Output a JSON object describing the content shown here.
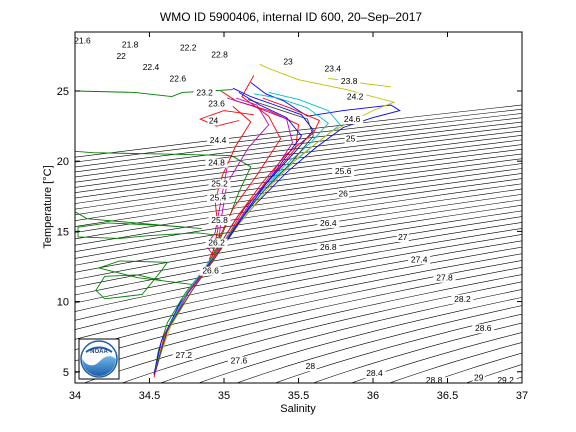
{
  "chart_data": {
    "type": "line",
    "title": "WMO ID 5900406, internal ID 600, 20–Sep–2017",
    "xlabel": "Salinity",
    "ylabel": "Temperature [°C]",
    "xlim": [
      34,
      37
    ],
    "ylim": [
      4.2,
      29.2
    ],
    "xticks": [
      34,
      34.5,
      35,
      35.5,
      36,
      36.5,
      37
    ],
    "xtick_labels": [
      "34",
      "34.5",
      "35",
      "35.5",
      "36",
      "36.5",
      "37"
    ],
    "yticks": [
      5,
      10,
      15,
      20,
      25
    ],
    "ytick_labels": [
      "5",
      "10",
      "15",
      "20",
      "25"
    ],
    "grid": false,
    "density_contour_labels": [
      {
        "label": "21.6",
        "x": 34.05,
        "y": 28.6
      },
      {
        "label": "21.8",
        "x": 34.37,
        "y": 28.3
      },
      {
        "label": "22",
        "x": 34.31,
        "y": 27.5
      },
      {
        "label": "22.2",
        "x": 34.76,
        "y": 28.1
      },
      {
        "label": "22.4",
        "x": 34.51,
        "y": 26.7
      },
      {
        "label": "22.6",
        "x": 34.69,
        "y": 25.9
      },
      {
        "label": "22.8",
        "x": 34.97,
        "y": 27.6
      },
      {
        "label": "23",
        "x": 35.43,
        "y": 27.1
      },
      {
        "label": "23.2",
        "x": 34.87,
        "y": 24.9
      },
      {
        "label": "23.4",
        "x": 35.73,
        "y": 26.6
      },
      {
        "label": "23.6",
        "x": 34.95,
        "y": 24.1
      },
      {
        "label": "23.8",
        "x": 35.84,
        "y": 25.7
      },
      {
        "label": "24",
        "x": 34.93,
        "y": 22.9
      },
      {
        "label": "24.2",
        "x": 35.88,
        "y": 24.6
      },
      {
        "label": "24.4",
        "x": 34.96,
        "y": 21.5
      },
      {
        "label": "24.6",
        "x": 35.86,
        "y": 23.0
      },
      {
        "label": "24.8",
        "x": 34.95,
        "y": 19.9
      },
      {
        "label": "25",
        "x": 35.85,
        "y": 21.6
      },
      {
        "label": "25.2",
        "x": 34.97,
        "y": 18.4
      },
      {
        "label": "25.4",
        "x": 34.96,
        "y": 17.4
      },
      {
        "label": "25.6",
        "x": 35.8,
        "y": 19.3
      },
      {
        "label": "25.8",
        "x": 34.97,
        "y": 15.8
      },
      {
        "label": "26",
        "x": 35.8,
        "y": 17.7
      },
      {
        "label": "26.2",
        "x": 34.95,
        "y": 14.2
      },
      {
        "label": "26.4",
        "x": 35.7,
        "y": 15.6
      },
      {
        "label": "26.6",
        "x": 34.91,
        "y": 12.2
      },
      {
        "label": "26.8",
        "x": 35.7,
        "y": 13.9
      },
      {
        "label": "27",
        "x": 36.2,
        "y": 14.6
      },
      {
        "label": "27.2",
        "x": 34.73,
        "y": 6.2
      },
      {
        "label": "27.4",
        "x": 36.31,
        "y": 13.0
      },
      {
        "label": "27.6",
        "x": 35.1,
        "y": 5.8
      },
      {
        "label": "27.8",
        "x": 36.48,
        "y": 11.7
      },
      {
        "label": "28",
        "x": 35.58,
        "y": 5.4
      },
      {
        "label": "28.2",
        "x": 36.6,
        "y": 10.2
      },
      {
        "label": "28.4",
        "x": 36.01,
        "y": 4.9
      },
      {
        "label": "28.6",
        "x": 36.74,
        "y": 8.1
      },
      {
        "label": "28.8",
        "x": 36.41,
        "y": 4.4
      },
      {
        "label": "29",
        "x": 36.71,
        "y": 4.6
      },
      {
        "label": "29.2",
        "x": 36.89,
        "y": 4.4
      }
    ],
    "profile_colors": [
      "#0000ff",
      "#008000",
      "#ff0000",
      "#00bfbf",
      "#bf00bf",
      "#bfbf00",
      "#404040"
    ],
    "series": [
      {
        "color": "#008000",
        "points": [
          [
            34.53,
            4.8
          ],
          [
            34.56,
            6.5
          ],
          [
            34.62,
            8.5
          ],
          [
            34.74,
            10.6
          ],
          [
            34.88,
            12.5
          ],
          [
            34.94,
            13.6
          ],
          [
            34.89,
            14.2
          ],
          [
            34.98,
            14.7
          ],
          [
            34.82,
            14.9
          ],
          [
            34.5,
            14.7
          ],
          [
            34.3,
            14.5
          ],
          [
            34.02,
            14.6
          ],
          [
            34.02,
            15.3
          ],
          [
            34.22,
            15.6
          ],
          [
            34.62,
            15.4
          ],
          [
            34.85,
            15.2
          ],
          [
            34.08,
            15.9
          ],
          [
            34.0,
            16.4
          ]
        ]
      },
      {
        "color": "#008000",
        "points": [
          [
            34.58,
            11.5
          ],
          [
            34.42,
            11.9
          ],
          [
            34.2,
            11.8
          ],
          [
            34.14,
            10.8
          ],
          [
            34.2,
            10.2
          ],
          [
            34.45,
            10.5
          ],
          [
            34.58,
            12.2
          ],
          [
            34.62,
            12.8
          ],
          [
            34.3,
            12.9
          ],
          [
            34.16,
            12.4
          ],
          [
            34.42,
            11.7
          ],
          [
            34.8,
            11.2
          ]
        ]
      },
      {
        "color": "#008000",
        "points": [
          [
            34.94,
            13.6
          ],
          [
            35.02,
            15.6
          ],
          [
            35.1,
            17.8
          ],
          [
            35.18,
            19.6
          ],
          [
            35.05,
            20.4
          ],
          [
            34.6,
            20.5
          ],
          [
            34.12,
            20.6
          ],
          [
            34.0,
            20.7
          ]
        ]
      },
      {
        "color": "#008000",
        "points": [
          [
            34.0,
            25.0
          ],
          [
            34.4,
            24.9
          ],
          [
            34.65,
            24.6
          ],
          [
            34.72,
            24.9
          ],
          [
            34.9,
            25.0
          ],
          [
            35.06,
            25.1
          ]
        ]
      },
      {
        "color": "#0000ff",
        "points": [
          [
            34.53,
            4.8
          ],
          [
            34.58,
            7.2
          ],
          [
            34.7,
            9.8
          ],
          [
            34.88,
            12.4
          ],
          [
            35.02,
            14.5
          ],
          [
            35.2,
            16.8
          ],
          [
            35.42,
            19.2
          ],
          [
            35.62,
            21.0
          ],
          [
            35.8,
            22.4
          ],
          [
            36.0,
            23.1
          ],
          [
            36.18,
            23.6
          ],
          [
            36.12,
            24.0
          ],
          [
            35.8,
            23.6
          ],
          [
            35.56,
            23.2
          ],
          [
            35.4,
            24.3
          ],
          [
            35.28,
            24.8
          ],
          [
            35.18,
            25.6
          ]
        ]
      },
      {
        "color": "#0000ff",
        "points": [
          [
            34.95,
            13.7
          ],
          [
            35.1,
            16.2
          ],
          [
            35.3,
            18.6
          ],
          [
            35.48,
            20.7
          ],
          [
            35.6,
            22.2
          ],
          [
            35.52,
            23.3
          ],
          [
            35.34,
            24.0
          ],
          [
            35.18,
            24.6
          ],
          [
            35.06,
            25.2
          ]
        ]
      },
      {
        "color": "#ff0000",
        "points": [
          [
            34.53,
            4.6
          ],
          [
            34.6,
            7.6
          ],
          [
            34.74,
            10.4
          ],
          [
            34.9,
            12.6
          ],
          [
            35.02,
            14.6
          ],
          [
            35.14,
            16.7
          ],
          [
            35.32,
            18.9
          ],
          [
            35.48,
            20.9
          ],
          [
            35.5,
            22.6
          ],
          [
            35.3,
            23.6
          ],
          [
            35.08,
            24.3
          ],
          [
            34.98,
            25.0
          ]
        ]
      },
      {
        "color": "#ff0000",
        "points": [
          [
            34.9,
            13.0
          ],
          [
            34.98,
            14.8
          ],
          [
            35.06,
            16.6
          ],
          [
            35.22,
            19.0
          ],
          [
            35.38,
            21.6
          ],
          [
            35.3,
            23.2
          ],
          [
            35.12,
            24.6
          ],
          [
            35.2,
            26.1
          ]
        ]
      },
      {
        "color": "#ff0000",
        "points": [
          [
            34.92,
            13.2
          ],
          [
            34.96,
            15.2
          ],
          [
            34.94,
            17.2
          ],
          [
            34.99,
            19.0
          ],
          [
            35.08,
            21.1
          ],
          [
            35.18,
            22.8
          ],
          [
            35.06,
            23.9
          ]
        ]
      },
      {
        "color": "#ff0000",
        "points": [
          [
            35.2,
            23.3
          ],
          [
            35.0,
            23.6
          ],
          [
            34.84,
            23.0
          ],
          [
            34.95,
            22.5
          ],
          [
            35.1,
            22.9
          ]
        ]
      },
      {
        "color": "#00bfbf",
        "points": [
          [
            34.54,
            5.2
          ],
          [
            34.62,
            8.0
          ],
          [
            34.76,
            10.8
          ],
          [
            34.92,
            13.1
          ],
          [
            35.06,
            15.2
          ],
          [
            35.22,
            17.5
          ],
          [
            35.4,
            19.6
          ],
          [
            35.58,
            21.3
          ],
          [
            35.7,
            22.7
          ],
          [
            35.56,
            23.8
          ],
          [
            35.36,
            24.5
          ],
          [
            35.2,
            24.8
          ]
        ]
      },
      {
        "color": "#00bfbf",
        "points": [
          [
            35.0,
            14.1
          ],
          [
            35.16,
            16.6
          ],
          [
            35.36,
            19.0
          ],
          [
            35.6,
            21.1
          ],
          [
            35.78,
            22.6
          ],
          [
            35.7,
            23.6
          ],
          [
            35.5,
            24.4
          ],
          [
            35.3,
            24.9
          ]
        ]
      },
      {
        "color": "#bf00bf",
        "points": [
          [
            34.54,
            5.0
          ],
          [
            34.62,
            7.9
          ],
          [
            34.76,
            10.6
          ],
          [
            34.92,
            12.8
          ],
          [
            35.04,
            14.8
          ],
          [
            35.18,
            17.1
          ],
          [
            35.34,
            19.4
          ],
          [
            35.46,
            21.3
          ],
          [
            35.42,
            23.0
          ],
          [
            35.2,
            23.9
          ],
          [
            35.02,
            24.5
          ]
        ]
      },
      {
        "color": "#bf00bf",
        "points": [
          [
            34.96,
            13.7
          ],
          [
            34.98,
            15.8
          ],
          [
            35.02,
            18.4
          ],
          [
            35.16,
            20.9
          ],
          [
            35.3,
            22.6
          ],
          [
            35.22,
            24.0
          ],
          [
            35.08,
            24.5
          ]
        ]
      },
      {
        "color": "#bf00bf",
        "points": [
          [
            34.92,
            13.4
          ],
          [
            34.88,
            14.0
          ],
          [
            34.94,
            14.9
          ],
          [
            34.98,
            17.2
          ],
          [
            35.02,
            19.5
          ]
        ]
      },
      {
        "color": "#bfbf00",
        "points": [
          [
            34.55,
            5.5
          ],
          [
            34.64,
            8.2
          ],
          [
            34.8,
            11.0
          ],
          [
            34.96,
            13.4
          ],
          [
            35.12,
            15.8
          ],
          [
            35.3,
            18.1
          ],
          [
            35.5,
            20.3
          ],
          [
            35.72,
            22.1
          ],
          [
            36.0,
            23.6
          ],
          [
            36.14,
            24.2
          ],
          [
            35.82,
            25.1
          ],
          [
            35.5,
            25.8
          ],
          [
            35.3,
            26.6
          ],
          [
            35.24,
            26.9
          ]
        ]
      },
      {
        "color": "#bfbf00",
        "points": [
          [
            35.7,
            25.9
          ],
          [
            35.96,
            25.5
          ],
          [
            36.12,
            25.3
          ]
        ]
      },
      {
        "color": "#404040",
        "points": [
          [
            34.54,
            5.1
          ],
          [
            34.62,
            8.0
          ],
          [
            34.78,
            10.7
          ],
          [
            34.94,
            13.1
          ],
          [
            35.08,
            15.4
          ],
          [
            35.26,
            17.8
          ],
          [
            35.46,
            20.0
          ],
          [
            35.6,
            21.8
          ],
          [
            35.56,
            23.0
          ],
          [
            35.36,
            23.7
          ],
          [
            35.16,
            24.4
          ]
        ]
      },
      {
        "color": "#0000ff",
        "points": [
          [
            35.0,
            14.0
          ],
          [
            35.2,
            17.2
          ],
          [
            35.38,
            19.8
          ],
          [
            35.52,
            21.8
          ],
          [
            35.42,
            23.1
          ],
          [
            35.24,
            24.0
          ],
          [
            35.1,
            24.9
          ]
        ]
      },
      {
        "color": "#ff0000",
        "points": [
          [
            34.93,
            13.3
          ],
          [
            35.08,
            15.9
          ],
          [
            35.26,
            18.5
          ],
          [
            35.42,
            20.5
          ],
          [
            35.6,
            22.0
          ],
          [
            35.64,
            22.9
          ],
          [
            35.44,
            23.8
          ],
          [
            35.26,
            24.5
          ]
        ]
      }
    ],
    "logo": {
      "name": "noaa-logo",
      "text": "NOAA"
    }
  }
}
